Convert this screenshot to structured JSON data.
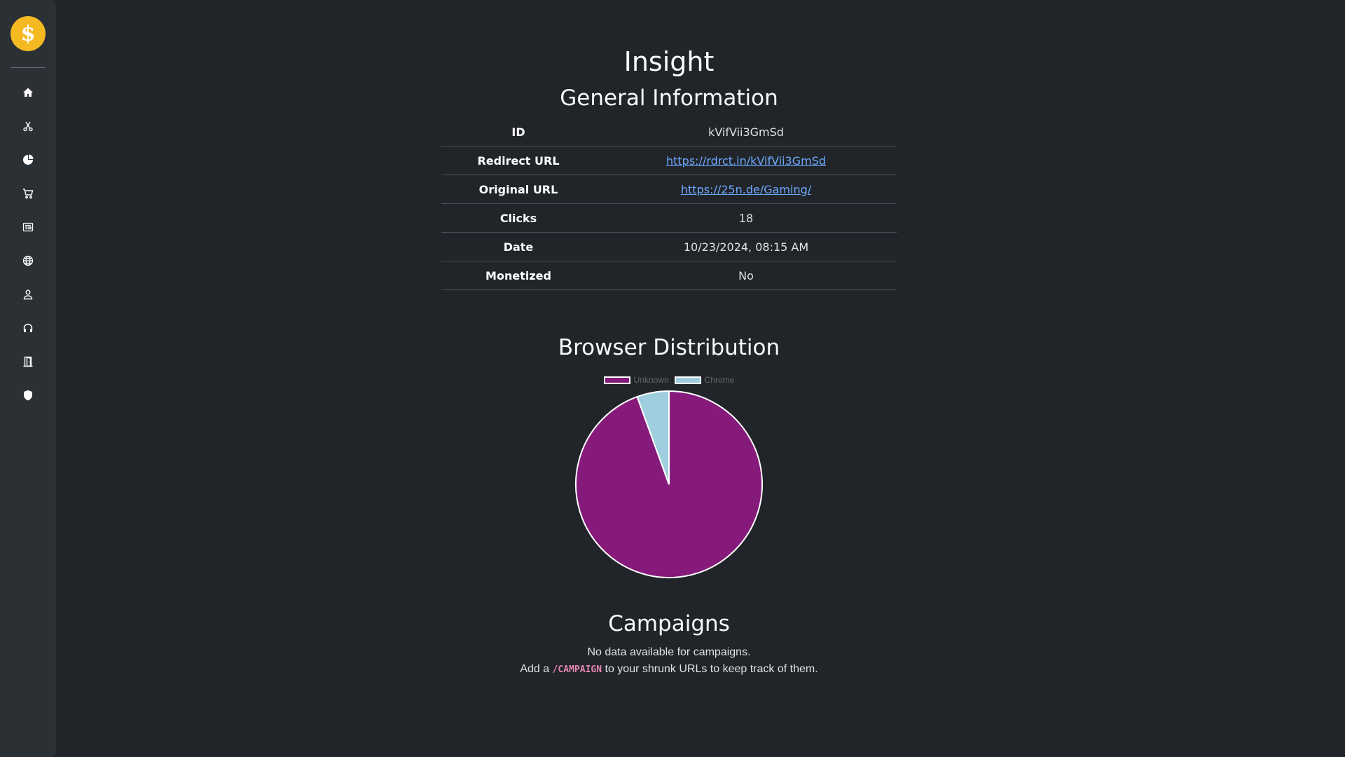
{
  "header": {
    "title": "Insight"
  },
  "sidebar": {
    "logo_label": "$",
    "items": [
      {
        "icon": "home-icon"
      },
      {
        "icon": "scissors-icon"
      },
      {
        "icon": "pie-chart-icon"
      },
      {
        "icon": "cart-icon"
      },
      {
        "icon": "newspaper-icon"
      },
      {
        "icon": "globe-icon"
      },
      {
        "icon": "person-icon"
      },
      {
        "icon": "headset-icon"
      },
      {
        "icon": "door-icon"
      },
      {
        "icon": "shield-icon"
      }
    ]
  },
  "general": {
    "title": "General Information",
    "rows": [
      {
        "key": "ID",
        "value": "kVifVii3GmSd"
      },
      {
        "key": "Redirect URL",
        "value": "https://rdrct.in/kVifVii3GmSd"
      },
      {
        "key": "Original URL",
        "value": "https://25n.de/Gaming/"
      },
      {
        "key": "Clicks",
        "value": "18"
      },
      {
        "key": "Date",
        "value": "10/23/2024, 08:15 AM"
      },
      {
        "key": "Monetized",
        "value": "No"
      }
    ]
  },
  "browser": {
    "title": "Browser Distribution"
  },
  "chart_data": {
    "type": "pie",
    "categories": [
      "Unknown",
      "Chrome"
    ],
    "values": [
      17,
      1
    ],
    "colors": [
      "#851a7a",
      "#9fcfdf"
    ],
    "legend_position": "top"
  },
  "campaigns": {
    "title": "Campaigns",
    "empty_text": "No data available for campaigns.",
    "hint_prefix": "Add a",
    "hint_code": "/CAMPAIGN",
    "hint_suffix": "to your shrunk URLs to keep track of them."
  },
  "colors": {
    "background": "#212529",
    "sidebar": "#2b3035",
    "logo": "#f5b922",
    "link": "#6ea8fe"
  }
}
